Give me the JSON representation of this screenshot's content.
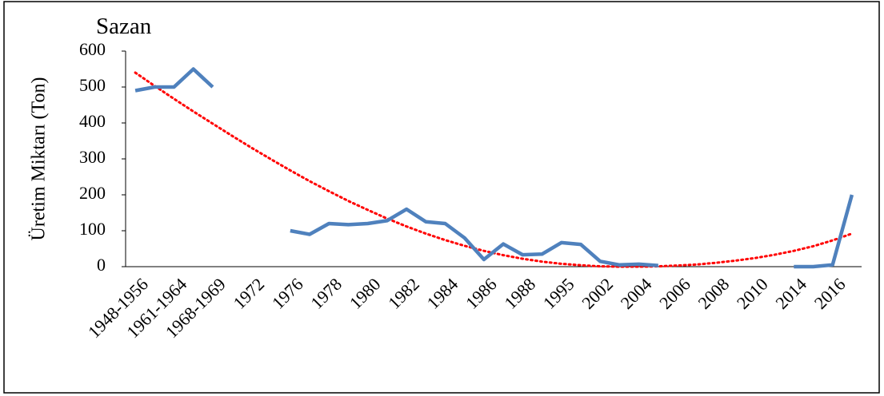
{
  "chart_data": {
    "type": "line",
    "title": "Sazan",
    "y_label": "Üretim Miktarı (Ton)",
    "categories": [
      "1948-1956",
      null,
      "1961-1964",
      null,
      "1968-1969",
      null,
      "1972",
      null,
      "1976",
      null,
      "1978",
      null,
      "1980",
      null,
      "1982",
      null,
      "1984",
      null,
      "1986",
      null,
      "1988",
      null,
      "1995",
      null,
      "2002",
      null,
      "2004",
      null,
      "2006",
      null,
      "2008",
      null,
      "2010",
      null,
      "2014",
      null,
      "2016",
      null
    ],
    "series": [
      {
        "color": "#4f81bd",
        "values": [
          490,
          500,
          500,
          550,
          500,
          null,
          null,
          null,
          100,
          90,
          120,
          117,
          120,
          128,
          160,
          125,
          120,
          80,
          20,
          63,
          33,
          35,
          67,
          62,
          15,
          5,
          7,
          3,
          null,
          null,
          null,
          null,
          null,
          null,
          0,
          0,
          5,
          200
        ]
      }
    ],
    "trendline": {
      "color": "#ff0000",
      "values": [
        540,
        503,
        467,
        432,
        398,
        364,
        331,
        299,
        268,
        238,
        210,
        183,
        158,
        134,
        112,
        92,
        74,
        58,
        44,
        32,
        22,
        14,
        8,
        4,
        1,
        0,
        0,
        1,
        3,
        6,
        11,
        17,
        24,
        33,
        44,
        57,
        73,
        92
      ]
    },
    "ylim": [
      0,
      600
    ],
    "yticks": [
      0,
      100,
      200,
      300,
      400,
      500,
      600
    ]
  }
}
